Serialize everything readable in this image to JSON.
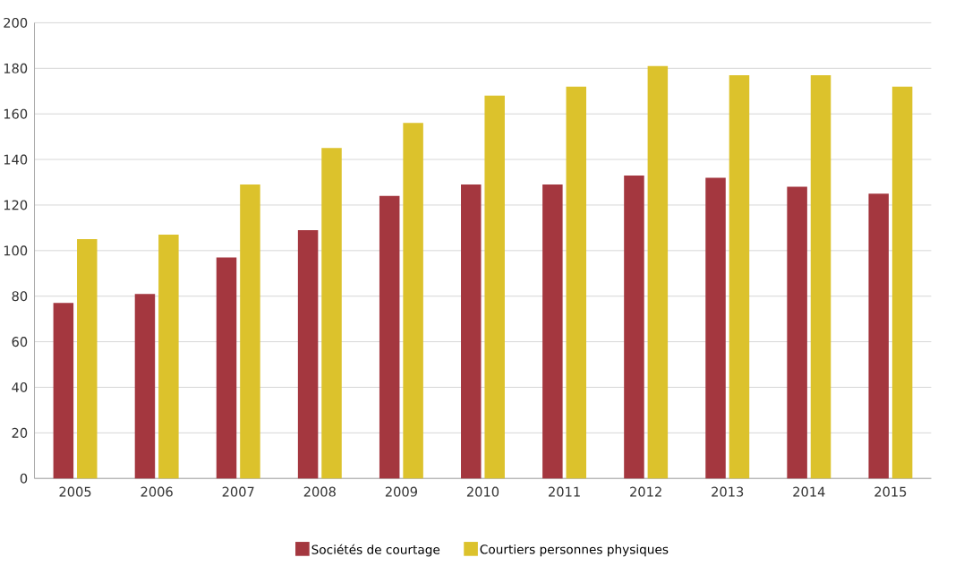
{
  "chart_data": {
    "type": "bar",
    "categories": [
      "2005",
      "2006",
      "2007",
      "2008",
      "2009",
      "2010",
      "2011",
      "2012",
      "2013",
      "2014",
      "2015"
    ],
    "series": [
      {
        "name": "Sociétés de courtage",
        "color": "#a4373f",
        "values": [
          77,
          81,
          97,
          109,
          124,
          129,
          129,
          133,
          132,
          128,
          125
        ]
      },
      {
        "name": "Courtiers personnes physiques",
        "color": "#dcc22c",
        "values": [
          105,
          107,
          129,
          145,
          156,
          168,
          172,
          181,
          177,
          177,
          172
        ]
      }
    ],
    "ylim": [
      0,
      200
    ],
    "yticks": [
      0,
      20,
      40,
      60,
      80,
      100,
      120,
      140,
      160,
      180,
      200
    ],
    "grid": "y",
    "legend": "bottom"
  }
}
